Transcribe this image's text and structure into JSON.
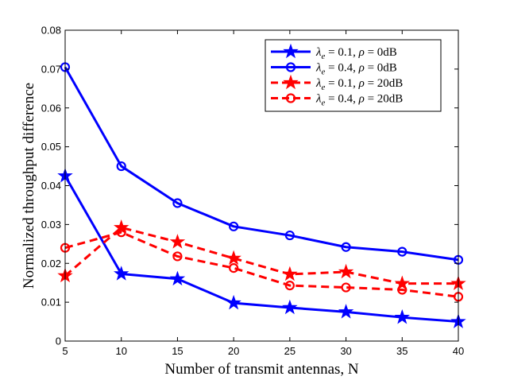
{
  "chart_data": {
    "type": "line",
    "title": "",
    "xlabel": "Number of transmit antennas, N",
    "ylabel": "Normalized throughput difference",
    "x": [
      5,
      10,
      15,
      20,
      25,
      30,
      35,
      40
    ],
    "xlim": [
      5,
      40
    ],
    "ylim": [
      0,
      0.08
    ],
    "xticks": [
      "5",
      "10",
      "15",
      "20",
      "25",
      "30",
      "35",
      "40"
    ],
    "yticks": [
      "0",
      "0.01",
      "0.02",
      "0.03",
      "0.04",
      "0.05",
      "0.06",
      "0.07",
      "0.08"
    ],
    "grid": false,
    "legend_position": "top-right",
    "series": [
      {
        "name": "λe = 0.1, ρ = 0dB",
        "legend": {
          "lambda": "λ",
          "sub": "e",
          "lam_val": " = 0.1, ",
          "rho": "ρ",
          "rho_val": " = 0dB"
        },
        "values": [
          0.0425,
          0.0173,
          0.016,
          0.0098,
          0.0086,
          0.0075,
          0.0061,
          0.005
        ],
        "color": "#0000ff",
        "dash": "solid",
        "marker": "star"
      },
      {
        "name": "λe = 0.4, ρ = 0dB",
        "legend": {
          "lambda": "λ",
          "sub": "e",
          "lam_val": " = 0.4, ",
          "rho": "ρ",
          "rho_val": " = 0dB"
        },
        "values": [
          0.0705,
          0.045,
          0.0355,
          0.0295,
          0.0272,
          0.0242,
          0.023,
          0.0209
        ],
        "color": "#0000ff",
        "dash": "solid",
        "marker": "circle"
      },
      {
        "name": "λe = 0.1, ρ = 20dB",
        "legend": {
          "lambda": "λ",
          "sub": "e",
          "lam_val": " = 0.1, ",
          "rho": "ρ",
          "rho_val": " = 20dB"
        },
        "values": [
          0.0168,
          0.0292,
          0.0255,
          0.0213,
          0.0172,
          0.0178,
          0.0148,
          0.0148
        ],
        "color": "#ff0000",
        "dash": "dashed",
        "marker": "star"
      },
      {
        "name": "λe = 0.4, ρ = 20dB",
        "legend": {
          "lambda": "λ",
          "sub": "e",
          "lam_val": " = 0.4, ",
          "rho": "ρ",
          "rho_val": " = 20dB"
        },
        "values": [
          0.024,
          0.028,
          0.0218,
          0.0188,
          0.0143,
          0.0138,
          0.0132,
          0.0114
        ],
        "color": "#ff0000",
        "dash": "dashed",
        "marker": "circle"
      }
    ]
  }
}
